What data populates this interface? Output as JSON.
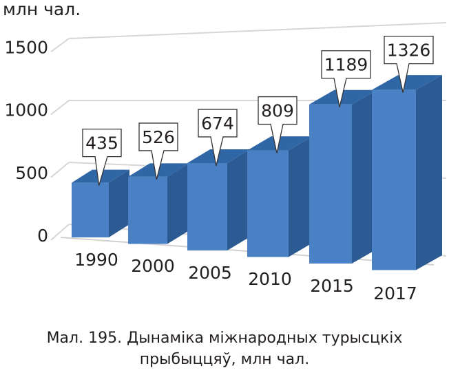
{
  "chart_data": {
    "type": "bar",
    "unit_label": "млн чал.",
    "categories": [
      "1990",
      "2000",
      "2005",
      "2010",
      "2015",
      "2017"
    ],
    "values": [
      435,
      526,
      674,
      809,
      1189,
      1326
    ],
    "data_labels": [
      "435",
      "526",
      "674",
      "809",
      "1189",
      "1326"
    ],
    "yticks": [
      "0",
      "500",
      "1000",
      "1500"
    ],
    "ylim": [
      0,
      1500
    ],
    "grid": true,
    "style": "3d-column",
    "bar_color": "#4a80c4"
  },
  "caption": {
    "line1": "Мал. 195. Дынаміка міжнародных турысцкіх",
    "line2": "прыбыццяў, млн чал."
  }
}
